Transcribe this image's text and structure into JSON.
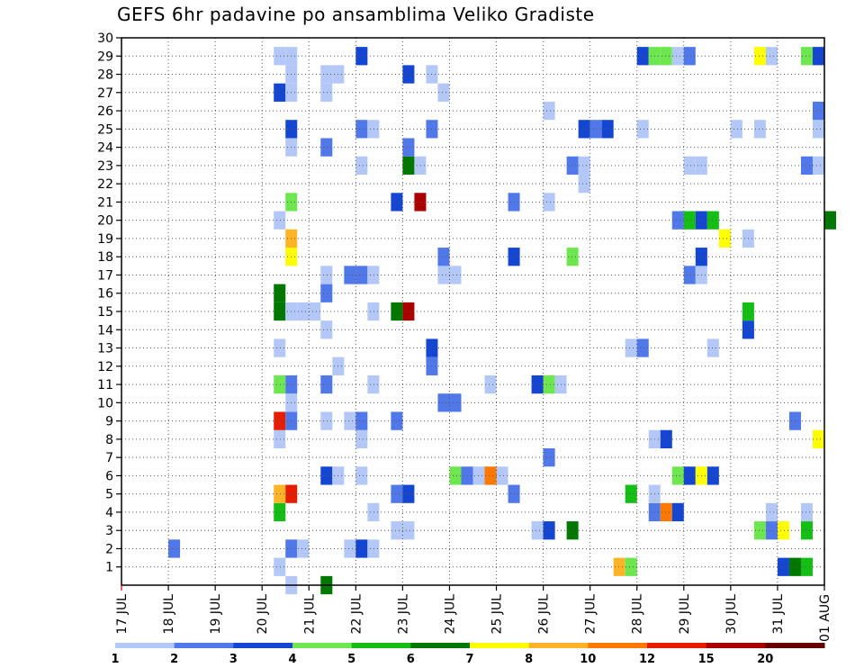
{
  "chart_data": {
    "type": "heatmap",
    "title": "GEFS 6hr padavine po ansamblima Veliko Gradiste",
    "x_tick_labels": [
      "17 JUL",
      "18 JUL",
      "19 JUL",
      "20 JUL",
      "21 JUL",
      "22 JUL",
      "23 JUL",
      "24 JUL",
      "25 JUL",
      "26 JUL",
      "27 JUL",
      "28 JUL",
      "29 JUL",
      "30 JUL",
      "31 JUL",
      "01 AUG"
    ],
    "y_tick_labels": [
      "1",
      "2",
      "3",
      "4",
      "5",
      "6",
      "7",
      "8",
      "9",
      "10",
      "11",
      "12",
      "13",
      "14",
      "15",
      "16",
      "17",
      "18",
      "19",
      "20",
      "21",
      "22",
      "23",
      "24",
      "25",
      "26",
      "27",
      "28",
      "29",
      "30"
    ],
    "ylim": [
      0,
      30
    ],
    "grid": true,
    "color_scale": {
      "labels": [
        "1",
        "2",
        "3",
        "4",
        "5",
        "6",
        "7",
        "8",
        "10",
        "12",
        "15",
        "20"
      ],
      "colors": [
        "#b4c8f8",
        "#5078e8",
        "#1446d2",
        "#6ee650",
        "#14be14",
        "#007800",
        "#ffff00",
        "#ffb428",
        "#ff7800",
        "#e61e00",
        "#aa0000",
        "#640000"
      ]
    },
    "cells": [
      {
        "d": "2025-07-20 06:00",
        "m": 1,
        "v": 1
      },
      {
        "d": "2025-07-20 12:00",
        "m": 0,
        "v": 1
      },
      {
        "d": "2025-07-21 06:00",
        "m": 0,
        "v": 6
      },
      {
        "d": "2025-07-27 12:00",
        "m": 1,
        "v": 9
      },
      {
        "d": "2025-07-27 18:00",
        "m": 1,
        "v": 4
      },
      {
        "d": "2025-07-31 00:00",
        "m": 1,
        "v": 3
      },
      {
        "d": "2025-07-31 06:00",
        "m": 1,
        "v": 6
      },
      {
        "d": "2025-07-31 12:00",
        "m": 1,
        "v": 5
      },
      {
        "d": "2025-07-18 00:00",
        "m": 2,
        "v": 2
      },
      {
        "d": "2025-07-20 12:00",
        "m": 2,
        "v": 2
      },
      {
        "d": "2025-07-20 18:00",
        "m": 2,
        "v": 1
      },
      {
        "d": "2025-07-21 18:00",
        "m": 2,
        "v": 1
      },
      {
        "d": "2025-07-22 00:00",
        "m": 2,
        "v": 3
      },
      {
        "d": "2025-07-22 06:00",
        "m": 2,
        "v": 1
      },
      {
        "d": "2025-07-22 18:00",
        "m": 3,
        "v": 1
      },
      {
        "d": "2025-07-23 00:00",
        "m": 3,
        "v": 1
      },
      {
        "d": "2025-07-25 18:00",
        "m": 3,
        "v": 1
      },
      {
        "d": "2025-07-26 00:00",
        "m": 3,
        "v": 3
      },
      {
        "d": "2025-07-26 12:00",
        "m": 3,
        "v": 6
      },
      {
        "d": "2025-07-30 12:00",
        "m": 3,
        "v": 4
      },
      {
        "d": "2025-07-30 18:00",
        "m": 3,
        "v": 2
      },
      {
        "d": "2025-07-31 00:00",
        "m": 3,
        "v": 7
      },
      {
        "d": "2025-07-31 12:00",
        "m": 3,
        "v": 5
      },
      {
        "d": "2025-07-20 06:00",
        "m": 4,
        "v": 5
      },
      {
        "d": "2025-07-22 06:00",
        "m": 4,
        "v": 1
      },
      {
        "d": "2025-07-28 06:00",
        "m": 4,
        "v": 2
      },
      {
        "d": "2025-07-28 12:00",
        "m": 4,
        "v": 10
      },
      {
        "d": "2025-07-28 18:00",
        "m": 4,
        "v": 3
      },
      {
        "d": "2025-07-30 18:00",
        "m": 4,
        "v": 1
      },
      {
        "d": "2025-07-31 12:00",
        "m": 4,
        "v": 1
      },
      {
        "d": "2025-07-20 06:00",
        "m": 5,
        "v": 8
      },
      {
        "d": "2025-07-20 12:00",
        "m": 5,
        "v": 12
      },
      {
        "d": "2025-07-22 18:00",
        "m": 5,
        "v": 2
      },
      {
        "d": "2025-07-23 00:00",
        "m": 5,
        "v": 3
      },
      {
        "d": "2025-07-25 06:00",
        "m": 5,
        "v": 2
      },
      {
        "d": "2025-07-27 18:00",
        "m": 5,
        "v": 5
      },
      {
        "d": "2025-07-28 06:00",
        "m": 5,
        "v": 1
      },
      {
        "d": "2025-07-21 06:00",
        "m": 6,
        "v": 3
      },
      {
        "d": "2025-07-21 12:00",
        "m": 6,
        "v": 1
      },
      {
        "d": "2025-07-22 00:00",
        "m": 6,
        "v": 1
      },
      {
        "d": "2025-07-24 00:00",
        "m": 6,
        "v": 4
      },
      {
        "d": "2025-07-24 06:00",
        "m": 6,
        "v": 2
      },
      {
        "d": "2025-07-24 12:00",
        "m": 6,
        "v": 1
      },
      {
        "d": "2025-07-24 18:00",
        "m": 6,
        "v": 10
      },
      {
        "d": "2025-07-25 00:00",
        "m": 6,
        "v": 1
      },
      {
        "d": "2025-07-28 18:00",
        "m": 6,
        "v": 4
      },
      {
        "d": "2025-07-29 00:00",
        "m": 6,
        "v": 3
      },
      {
        "d": "2025-07-29 06:00",
        "m": 6,
        "v": 7
      },
      {
        "d": "2025-07-29 12:00",
        "m": 6,
        "v": 3
      },
      {
        "d": "2025-07-26 00:00",
        "m": 7,
        "v": 2
      },
      {
        "d": "2025-07-20 06:00",
        "m": 8,
        "v": 1
      },
      {
        "d": "2025-07-22 00:00",
        "m": 8,
        "v": 1
      },
      {
        "d": "2025-07-28 06:00",
        "m": 8,
        "v": 1
      },
      {
        "d": "2025-07-28 12:00",
        "m": 8,
        "v": 3
      },
      {
        "d": "2025-07-31 18:00",
        "m": 8,
        "v": 7
      },
      {
        "d": "2025-07-20 06:00",
        "m": 9,
        "v": 12
      },
      {
        "d": "2025-07-20 12:00",
        "m": 9,
        "v": 2
      },
      {
        "d": "2025-07-21 06:00",
        "m": 9,
        "v": 1
      },
      {
        "d": "2025-07-21 18:00",
        "m": 9,
        "v": 1
      },
      {
        "d": "2025-07-22 00:00",
        "m": 9,
        "v": 2
      },
      {
        "d": "2025-07-22 18:00",
        "m": 9,
        "v": 2
      },
      {
        "d": "2025-07-31 06:00",
        "m": 9,
        "v": 2
      },
      {
        "d": "2025-07-20 12:00",
        "m": 10,
        "v": 1
      },
      {
        "d": "2025-07-23 18:00",
        "m": 10,
        "v": 2
      },
      {
        "d": "2025-07-24 00:00",
        "m": 10,
        "v": 2
      },
      {
        "d": "2025-07-20 06:00",
        "m": 11,
        "v": 4
      },
      {
        "d": "2025-07-20 12:00",
        "m": 11,
        "v": 2
      },
      {
        "d": "2025-07-21 06:00",
        "m": 11,
        "v": 2
      },
      {
        "d": "2025-07-22 06:00",
        "m": 11,
        "v": 1
      },
      {
        "d": "2025-07-24 18:00",
        "m": 11,
        "v": 1
      },
      {
        "d": "2025-07-25 18:00",
        "m": 11,
        "v": 3
      },
      {
        "d": "2025-07-26 00:00",
        "m": 11,
        "v": 4
      },
      {
        "d": "2025-07-26 06:00",
        "m": 11,
        "v": 1
      },
      {
        "d": "2025-07-21 12:00",
        "m": 12,
        "v": 1
      },
      {
        "d": "2025-07-23 12:00",
        "m": 12,
        "v": 2
      },
      {
        "d": "2025-07-23 12:00",
        "m": 13,
        "v": 3
      },
      {
        "d": "2025-07-20 06:00",
        "m": 13,
        "v": 1
      },
      {
        "d": "2025-07-27 18:00",
        "m": 13,
        "v": 1
      },
      {
        "d": "2025-07-28 00:00",
        "m": 13,
        "v": 2
      },
      {
        "d": "2025-07-29 12:00",
        "m": 13,
        "v": 1
      },
      {
        "d": "2025-07-21 06:00",
        "m": 14,
        "v": 1
      },
      {
        "d": "2025-07-30 06:00",
        "m": 14,
        "v": 3
      },
      {
        "d": "2025-07-20 06:00",
        "m": 15,
        "v": 6
      },
      {
        "d": "2025-07-20 12:00",
        "m": 15,
        "v": 1
      },
      {
        "d": "2025-07-20 18:00",
        "m": 15,
        "v": 1
      },
      {
        "d": "2025-07-21 00:00",
        "m": 15,
        "v": 1
      },
      {
        "d": "2025-07-22 06:00",
        "m": 15,
        "v": 1
      },
      {
        "d": "2025-07-22 18:00",
        "m": 15,
        "v": 6
      },
      {
        "d": "2025-07-23 00:00",
        "m": 15,
        "v": 15
      },
      {
        "d": "2025-07-30 06:00",
        "m": 15,
        "v": 5
      },
      {
        "d": "2025-07-20 06:00",
        "m": 16,
        "v": 6
      },
      {
        "d": "2025-07-21 06:00",
        "m": 16,
        "v": 2
      },
      {
        "d": "2025-07-21 06:00",
        "m": 17,
        "v": 1
      },
      {
        "d": "2025-07-21 18:00",
        "m": 17,
        "v": 2
      },
      {
        "d": "2025-07-22 00:00",
        "m": 17,
        "v": 2
      },
      {
        "d": "2025-07-22 06:00",
        "m": 17,
        "v": 1
      },
      {
        "d": "2025-07-23 18:00",
        "m": 17,
        "v": 1
      },
      {
        "d": "2025-07-24 00:00",
        "m": 17,
        "v": 1
      },
      {
        "d": "2025-07-29 00:00",
        "m": 17,
        "v": 2
      },
      {
        "d": "2025-07-29 06:00",
        "m": 17,
        "v": 1
      },
      {
        "d": "2025-07-20 12:00",
        "m": 18,
        "v": 7
      },
      {
        "d": "2025-07-23 18:00",
        "m": 18,
        "v": 2
      },
      {
        "d": "2025-07-25 06:00",
        "m": 18,
        "v": 3
      },
      {
        "d": "2025-07-26 12:00",
        "m": 18,
        "v": 4
      },
      {
        "d": "2025-07-29 06:00",
        "m": 18,
        "v": 3
      },
      {
        "d": "2025-07-20 12:00",
        "m": 19,
        "v": 8
      },
      {
        "d": "2025-07-29 18:00",
        "m": 19,
        "v": 7
      },
      {
        "d": "2025-07-30 06:00",
        "m": 19,
        "v": 1
      },
      {
        "d": "2025-07-20 06:00",
        "m": 20,
        "v": 1
      },
      {
        "d": "2025-07-28 18:00",
        "m": 20,
        "v": 2
      },
      {
        "d": "2025-07-29 00:00",
        "m": 20,
        "v": 5
      },
      {
        "d": "2025-07-29 06:00",
        "m": 20,
        "v": 3
      },
      {
        "d": "2025-07-29 12:00",
        "m": 20,
        "v": 5
      },
      {
        "d": "2025-08-01 00:00",
        "m": 20,
        "v": 6
      },
      {
        "d": "2025-07-20 12:00",
        "m": 21,
        "v": 4
      },
      {
        "d": "2025-07-22 18:00",
        "m": 21,
        "v": 3
      },
      {
        "d": "2025-07-23 06:00",
        "m": 21,
        "v": 15
      },
      {
        "d": "2025-07-25 06:00",
        "m": 21,
        "v": 2
      },
      {
        "d": "2025-07-26 00:00",
        "m": 21,
        "v": 1
      },
      {
        "d": "2025-07-26 18:00",
        "m": 22,
        "v": 1
      },
      {
        "d": "2025-07-22 00:00",
        "m": 23,
        "v": 1
      },
      {
        "d": "2025-07-23 00:00",
        "m": 23,
        "v": 6
      },
      {
        "d": "2025-07-23 06:00",
        "m": 23,
        "v": 1
      },
      {
        "d": "2025-07-26 12:00",
        "m": 23,
        "v": 2
      },
      {
        "d": "2025-07-26 18:00",
        "m": 23,
        "v": 1
      },
      {
        "d": "2025-07-29 00:00",
        "m": 23,
        "v": 1
      },
      {
        "d": "2025-07-29 06:00",
        "m": 23,
        "v": 1
      },
      {
        "d": "2025-07-31 12:00",
        "m": 23,
        "v": 2
      },
      {
        "d": "2025-07-31 18:00",
        "m": 23,
        "v": 1
      },
      {
        "d": "2025-07-20 12:00",
        "m": 24,
        "v": 1
      },
      {
        "d": "2025-07-21 06:00",
        "m": 24,
        "v": 2
      },
      {
        "d": "2025-07-23 00:00",
        "m": 24,
        "v": 2
      },
      {
        "d": "2025-07-20 12:00",
        "m": 25,
        "v": 3
      },
      {
        "d": "2025-07-22 00:00",
        "m": 25,
        "v": 2
      },
      {
        "d": "2025-07-22 06:00",
        "m": 25,
        "v": 1
      },
      {
        "d": "2025-07-23 12:00",
        "m": 25,
        "v": 2
      },
      {
        "d": "2025-07-26 18:00",
        "m": 25,
        "v": 3
      },
      {
        "d": "2025-07-27 00:00",
        "m": 25,
        "v": 2
      },
      {
        "d": "2025-07-27 06:00",
        "m": 25,
        "v": 3
      },
      {
        "d": "2025-07-28 00:00",
        "m": 25,
        "v": 1
      },
      {
        "d": "2025-07-30 00:00",
        "m": 25,
        "v": 1
      },
      {
        "d": "2025-07-30 12:00",
        "m": 25,
        "v": 1
      },
      {
        "d": "2025-07-31 18:00",
        "m": 25,
        "v": 1
      },
      {
        "d": "2025-07-26 00:00",
        "m": 26,
        "v": 1
      },
      {
        "d": "2025-07-31 18:00",
        "m": 26,
        "v": 2
      },
      {
        "d": "2025-07-20 06:00",
        "m": 27,
        "v": 3
      },
      {
        "d": "2025-07-20 12:00",
        "m": 27,
        "v": 1
      },
      {
        "d": "2025-07-21 06:00",
        "m": 27,
        "v": 1
      },
      {
        "d": "2025-07-23 18:00",
        "m": 27,
        "v": 1
      },
      {
        "d": "2025-07-20 12:00",
        "m": 28,
        "v": 1
      },
      {
        "d": "2025-07-21 06:00",
        "m": 28,
        "v": 1
      },
      {
        "d": "2025-07-21 12:00",
        "m": 28,
        "v": 1
      },
      {
        "d": "2025-07-23 00:00",
        "m": 28,
        "v": 3
      },
      {
        "d": "2025-07-23 12:00",
        "m": 28,
        "v": 1
      },
      {
        "d": "2025-07-20 06:00",
        "m": 29,
        "v": 1
      },
      {
        "d": "2025-07-20 12:00",
        "m": 29,
        "v": 1
      },
      {
        "d": "2025-07-22 00:00",
        "m": 29,
        "v": 3
      },
      {
        "d": "2025-07-28 00:00",
        "m": 29,
        "v": 3
      },
      {
        "d": "2025-07-28 06:00",
        "m": 29,
        "v": 4
      },
      {
        "d": "2025-07-28 12:00",
        "m": 29,
        "v": 4
      },
      {
        "d": "2025-07-28 18:00",
        "m": 29,
        "v": 1
      },
      {
        "d": "2025-07-29 00:00",
        "m": 29,
        "v": 2
      },
      {
        "d": "2025-07-30 12:00",
        "m": 29,
        "v": 7
      },
      {
        "d": "2025-07-30 18:00",
        "m": 29,
        "v": 1
      },
      {
        "d": "2025-07-31 12:00",
        "m": 29,
        "v": 4
      },
      {
        "d": "2025-07-31 18:00",
        "m": 29,
        "v": 3
      }
    ]
  }
}
